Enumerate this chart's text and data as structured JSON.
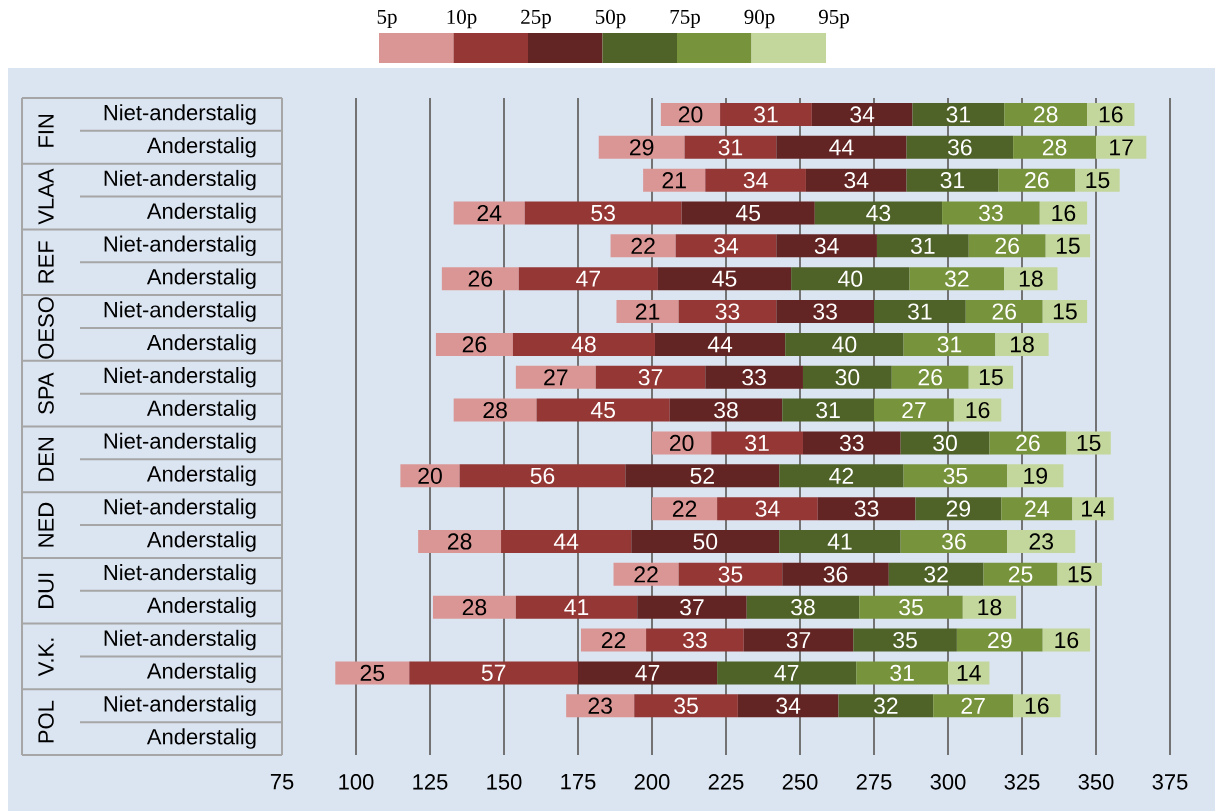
{
  "chart_data": {
    "type": "bar",
    "orientation": "horizontal",
    "data_labels": true,
    "grid": "x",
    "categories": [
      "Niet-anderstalig",
      "Anderstalig",
      "Niet-anderstalig",
      "Anderstalig",
      "Niet-anderstalig",
      "Anderstalig",
      "Niet-anderstalig",
      "Anderstalig",
      "Niet-anderstalig",
      "Anderstalig",
      "Niet-anderstalig",
      "Anderstalig",
      "Niet-anderstalig",
      "Anderstalig",
      "Niet-anderstalig",
      "Anderstalig",
      "Niet-anderstalig",
      "Anderstalig",
      "Niet-anderstalig",
      "Anderstalig"
    ],
    "series": [
      {
        "color": "#da9694",
        "values": [
          20,
          29,
          21,
          24,
          22,
          26,
          21,
          26,
          27,
          28,
          20,
          20,
          22,
          28,
          22,
          28,
          22,
          25,
          23,
          null
        ],
        "base": [
          203,
          182,
          197,
          133,
          186,
          129,
          188,
          127,
          154,
          133,
          200,
          115,
          200,
          121,
          187,
          126,
          176,
          93,
          171,
          null
        ]
      },
      {
        "color": "#953735",
        "values": [
          31,
          31,
          34,
          53,
          34,
          47,
          33,
          48,
          37,
          45,
          31,
          56,
          34,
          44,
          35,
          41,
          33,
          57,
          35,
          null
        ],
        "base": [
          223,
          211,
          218,
          157,
          208,
          155,
          209,
          153,
          181,
          161,
          220,
          135,
          222,
          149,
          209,
          154,
          198,
          118,
          194,
          null
        ]
      },
      {
        "color": "#632523",
        "values": [
          34,
          44,
          34,
          45,
          34,
          45,
          33,
          44,
          33,
          38,
          33,
          52,
          33,
          50,
          36,
          37,
          37,
          47,
          34,
          null
        ],
        "base": [
          254,
          242,
          252,
          210,
          242,
          202,
          242,
          201,
          218,
          206,
          251,
          191,
          256,
          193,
          244,
          195,
          231,
          175,
          229,
          null
        ]
      },
      {
        "color": "#4f6228",
        "values": [
          31,
          36,
          31,
          43,
          31,
          40,
          31,
          40,
          30,
          31,
          30,
          42,
          29,
          41,
          32,
          38,
          35,
          47,
          32,
          null
        ],
        "base": [
          288,
          286,
          286,
          255,
          276,
          247,
          275,
          245,
          251,
          244,
          284,
          243,
          289,
          243,
          280,
          232,
          268,
          222,
          263,
          null
        ]
      },
      {
        "color": "#77933c",
        "values": [
          28,
          28,
          26,
          33,
          26,
          32,
          26,
          31,
          26,
          27,
          26,
          35,
          24,
          36,
          25,
          35,
          29,
          31,
          27,
          null
        ],
        "base": [
          319,
          322,
          317,
          298,
          307,
          287,
          306,
          285,
          281,
          275,
          314,
          285,
          318,
          284,
          312,
          270,
          303,
          269,
          295,
          null
        ]
      },
      {
        "color": "#c3d69b",
        "values": [
          16,
          17,
          15,
          16,
          15,
          18,
          15,
          18,
          15,
          16,
          15,
          19,
          14,
          23,
          15,
          18,
          16,
          14,
          16,
          null
        ],
        "base": [
          347,
          350,
          343,
          331,
          333,
          319,
          332,
          316,
          307,
          302,
          340,
          320,
          342,
          320,
          337,
          305,
          332,
          300,
          322,
          null
        ]
      }
    ],
    "xlim": [
      75,
      375
    ],
    "xticks": [
      75,
      100,
      125,
      150,
      175,
      200,
      225,
      250,
      275,
      300,
      325,
      350,
      375
    ],
    "annotations": [
      "5p",
      "10p",
      "25p",
      "50p",
      "75p",
      "90p",
      "95p",
      "FIN",
      "VLAA",
      "REF",
      "OESO",
      "SPA",
      "DEN",
      "NED",
      "DUI",
      "V.K.",
      "POL"
    ]
  }
}
